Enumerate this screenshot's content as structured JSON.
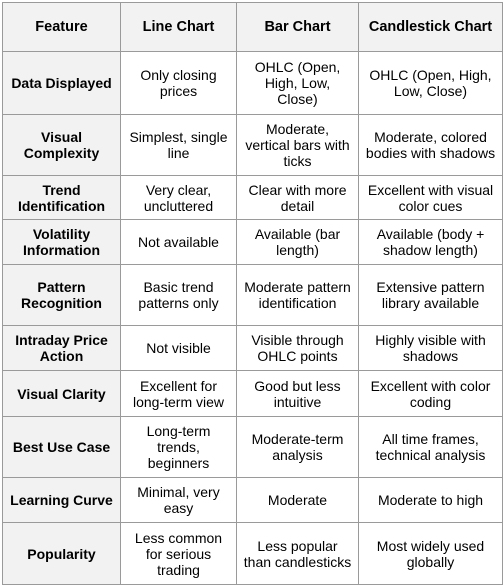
{
  "table": {
    "headers": [
      "Feature",
      "Line Chart",
      "Bar Chart",
      "Candlestick Chart"
    ],
    "rows": [
      {
        "feature": "Data Displayed",
        "line": "Only closing prices",
        "bar": "OHLC (Open, High, Low, Close)",
        "candle": "OHLC (Open, High, Low, Close)"
      },
      {
        "feature": "Visual Complexity",
        "line": "Simplest, single line",
        "bar": "Moderate, vertical bars with ticks",
        "candle": "Moderate, colored bodies with shadows"
      },
      {
        "feature": "Trend Identification",
        "line": "Very clear, uncluttered",
        "bar": "Clear with more detail",
        "candle": "Excellent with visual color cues"
      },
      {
        "feature": "Volatility Information",
        "line": "Not available",
        "bar": "Available (bar length)",
        "candle": "Available (body + shadow length)"
      },
      {
        "feature": "Pattern Recognition",
        "line": "Basic trend patterns only",
        "bar": "Moderate pattern identification",
        "candle": "Extensive pattern library available"
      },
      {
        "feature": "Intraday Price Action",
        "line": "Not visible",
        "bar": "Visible through OHLC points",
        "candle": "Highly visible with shadows"
      },
      {
        "feature": "Visual Clarity",
        "line": "Excellent for long-term view",
        "bar": "Good but less intuitive",
        "candle": "Excellent with color coding"
      },
      {
        "feature": "Best Use Case",
        "line": "Long-term trends, beginners",
        "bar": "Moderate-term analysis",
        "candle": "All time frames, technical analysis"
      },
      {
        "feature": "Learning Curve",
        "line": "Minimal, very easy",
        "bar": "Moderate",
        "candle": "Moderate to high"
      },
      {
        "feature": "Popularity",
        "line": "Less common for serious trading",
        "bar": "Less popular than candlesticks",
        "candle": "Most widely used globally"
      }
    ]
  }
}
